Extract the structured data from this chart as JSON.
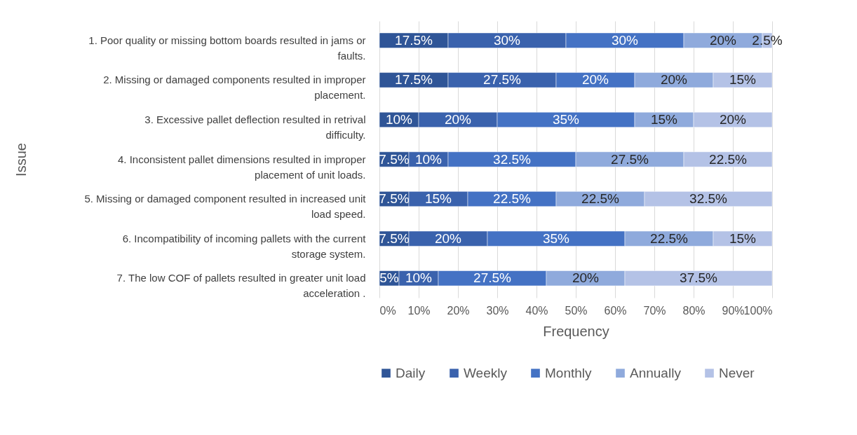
{
  "chart_data": {
    "type": "bar",
    "orientation": "horizontal",
    "stacked": true,
    "categories": [
      "1. Poor quality or missing bottom boards resulted in jams or faults.",
      "2. Missing or damaged components resulted in improper placement.",
      "3. Excessive pallet deflection resulted in retrival difficulty.",
      "4. Inconsistent pallet dimensions resulted in improper placement of unit loads.",
      "5. Missing or damaged component resulted in increased unit load speed.",
      "6. Incompatibility of incoming pallets with the current storage system.",
      "7. The low COF of pallets resulted in greater unit load acceleration ."
    ],
    "series": [
      {
        "name": "Daily",
        "color": "#2f5597",
        "values": [
          17.5,
          17.5,
          10,
          7.5,
          7.5,
          7.5,
          5
        ],
        "value_labels": [
          "17.5%",
          "17.5%",
          "10%",
          "7.5%",
          "7.5%",
          "7.5%",
          "5%"
        ]
      },
      {
        "name": "Weekly",
        "color": "#3a62ad",
        "values": [
          30,
          27.5,
          20,
          10,
          15,
          20,
          10
        ],
        "value_labels": [
          "30%",
          "27.5%",
          "20%",
          "10%",
          "15%",
          "20%",
          "10%"
        ]
      },
      {
        "name": "Monthly",
        "color": "#4472c4",
        "values": [
          30,
          20,
          35,
          32.5,
          22.5,
          35,
          27.5
        ],
        "value_labels": [
          "30%",
          "20%",
          "35%",
          "32.5%",
          "22.5%",
          "35%",
          "27.5%"
        ]
      },
      {
        "name": "Annually",
        "color": "#8faadc",
        "values": [
          20,
          20,
          15,
          27.5,
          22.5,
          22.5,
          20
        ],
        "value_labels": [
          "20%",
          "20%",
          "15%",
          "27.5%",
          "22.5%",
          "22.5%",
          "20%"
        ]
      },
      {
        "name": "Never",
        "color": "#b4c2e6",
        "values": [
          2.5,
          15,
          20,
          22.5,
          32.5,
          15,
          37.5
        ],
        "value_labels": [
          "2.5%",
          "15%",
          "20%",
          "22.5%",
          "32.5%",
          "15%",
          "37.5%"
        ]
      }
    ],
    "xlim": [
      0,
      100
    ],
    "xticks": [
      {
        "value": 0,
        "label": "0%"
      },
      {
        "value": 10,
        "label": "10%"
      },
      {
        "value": 20,
        "label": "20%"
      },
      {
        "value": 30,
        "label": "30%"
      },
      {
        "value": 40,
        "label": "40%"
      },
      {
        "value": 50,
        "label": "50%"
      },
      {
        "value": 60,
        "label": "60%"
      },
      {
        "value": 70,
        "label": "70%"
      },
      {
        "value": 80,
        "label": "80%"
      },
      {
        "value": 90,
        "label": "90%"
      },
      {
        "value": 100,
        "label": "100%"
      }
    ],
    "xlabel": "Frequency",
    "ylabel": "Issue",
    "grid": "x",
    "legend": "bottom"
  }
}
